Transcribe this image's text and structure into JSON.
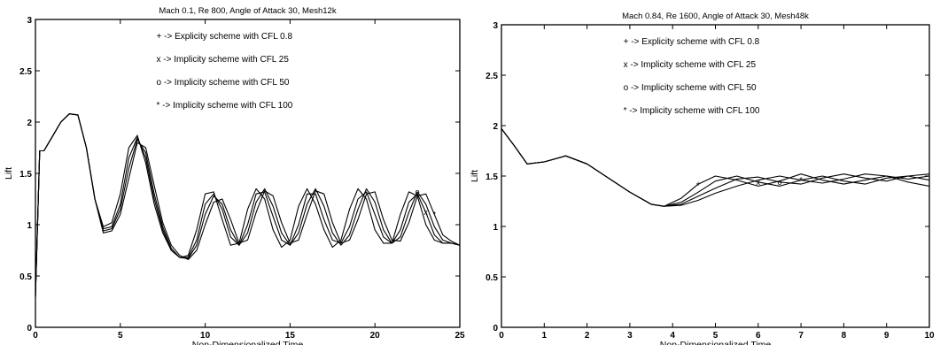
{
  "chart_data": [
    {
      "type": "line",
      "title": "Mach 0.1, Re 800, Angle of Attack 30, Mesh12k",
      "xlabel": "Non-Dimensionalized Time",
      "ylabel": "Lift",
      "xlim": [
        0,
        25
      ],
      "ylim": [
        0,
        3
      ],
      "xticks": [
        "0",
        "5",
        "10",
        "15",
        "20",
        "25"
      ],
      "yticks": [
        "0",
        "0.5",
        "1",
        "1.5",
        "2",
        "2.5",
        "3"
      ],
      "legend": [
        "+ -> Explicity scheme with CFL 0.8",
        "x -> Implicity scheme with CFL  25",
        "o -> Implicity scheme with CFL  50",
        "* -> Implicity scheme with CFL  100"
      ],
      "series": [
        {
          "marker": "+",
          "x": [
            0,
            0.25,
            0.5,
            1,
            1.5,
            2,
            2.5,
            3,
            3.5,
            4,
            4.5,
            5,
            5.5,
            6,
            6.5,
            7,
            7.5,
            8,
            8.5,
            9,
            9.5,
            10,
            10.5,
            11,
            11.5,
            12,
            12.5,
            13,
            13.5,
            14,
            14.5,
            15,
            15.5,
            16,
            16.5,
            17,
            17.5,
            18,
            18.5,
            19,
            19.5,
            20,
            20.5,
            21,
            21.5,
            22,
            22.5,
            23,
            23.5,
            24,
            24.5,
            25
          ],
          "y": [
            0.3,
            1.72,
            1.72,
            1.86,
            2.0,
            2.08,
            2.07,
            1.75,
            1.25,
            0.98,
            1.02,
            1.3,
            1.75,
            1.87,
            1.6,
            1.2,
            0.92,
            0.75,
            0.68,
            0.7,
            0.95,
            1.3,
            1.32,
            1.05,
            0.8,
            0.82,
            1.15,
            1.35,
            1.25,
            0.95,
            0.78,
            0.85,
            1.18,
            1.35,
            1.2,
            0.95,
            0.78,
            0.85,
            1.15,
            1.35,
            1.25,
            0.95,
            0.82,
            0.82,
            1.1,
            1.32,
            1.28,
            1.0,
            0.85,
            0.82,
            0.82,
            0.8
          ]
        },
        {
          "marker": "x",
          "x": [
            0,
            0.25,
            0.5,
            1,
            1.5,
            2,
            2.5,
            3,
            3.5,
            4,
            4.5,
            5,
            5.5,
            6,
            6.5,
            7,
            7.5,
            8,
            8.5,
            9,
            9.5,
            10,
            10.5,
            11,
            11.5,
            12,
            12.5,
            13,
            13.5,
            14,
            14.5,
            15,
            15.5,
            16,
            16.5,
            17,
            17.5,
            18,
            18.5,
            19,
            19.5,
            20,
            20.5,
            21,
            21.5,
            22,
            22.5,
            23,
            23.5,
            24,
            24.5,
            25
          ],
          "y": [
            0.3,
            1.72,
            1.72,
            1.86,
            2.0,
            2.08,
            2.07,
            1.75,
            1.25,
            0.96,
            0.98,
            1.2,
            1.65,
            1.85,
            1.65,
            1.25,
            0.95,
            0.75,
            0.68,
            0.68,
            0.85,
            1.2,
            1.3,
            1.15,
            0.88,
            0.8,
            1.0,
            1.3,
            1.32,
            1.08,
            0.85,
            0.8,
            1.0,
            1.3,
            1.3,
            1.05,
            0.85,
            0.82,
            0.98,
            1.25,
            1.32,
            1.1,
            0.88,
            0.82,
            0.95,
            1.22,
            1.3,
            1.12,
            0.9,
            0.82,
            0.82,
            0.8
          ]
        },
        {
          "marker": "o",
          "x": [
            0,
            0.25,
            0.5,
            1,
            1.5,
            2,
            2.5,
            3,
            3.5,
            4,
            4.5,
            5,
            5.5,
            6,
            6.5,
            7,
            7.5,
            8,
            8.5,
            9,
            9.5,
            10,
            10.5,
            11,
            11.5,
            12,
            12.5,
            13,
            13.5,
            14,
            14.5,
            15,
            15.5,
            16,
            16.5,
            17,
            17.5,
            18,
            18.5,
            19,
            19.5,
            20,
            20.5,
            21,
            21.5,
            22,
            22.5,
            23,
            23.5,
            24,
            24.5,
            25
          ],
          "y": [
            0.3,
            1.72,
            1.72,
            1.86,
            2.0,
            2.08,
            2.07,
            1.75,
            1.25,
            0.94,
            0.96,
            1.15,
            1.55,
            1.83,
            1.7,
            1.3,
            0.98,
            0.77,
            0.68,
            0.67,
            0.8,
            1.1,
            1.28,
            1.2,
            0.95,
            0.8,
            0.92,
            1.22,
            1.35,
            1.18,
            0.92,
            0.8,
            0.92,
            1.2,
            1.35,
            1.18,
            0.92,
            0.8,
            0.9,
            1.15,
            1.35,
            1.22,
            0.95,
            0.82,
            0.88,
            1.12,
            1.32,
            1.2,
            0.98,
            0.85,
            0.82,
            0.8
          ]
        },
        {
          "marker": "*",
          "x": [
            0,
            0.25,
            0.5,
            1,
            1.5,
            2,
            2.5,
            3,
            3.5,
            4,
            4.5,
            5,
            5.5,
            6,
            6.5,
            7,
            7.5,
            8,
            8.5,
            9,
            9.5,
            10,
            10.5,
            11,
            11.5,
            12,
            12.5,
            13,
            13.5,
            14,
            14.5,
            15,
            15.5,
            16,
            16.5,
            17,
            17.5,
            18,
            18.5,
            19,
            19.5,
            20,
            20.5,
            21,
            21.5,
            22,
            22.5,
            23,
            23.5,
            24,
            24.5,
            25
          ],
          "y": [
            0.3,
            1.72,
            1.72,
            1.86,
            2.0,
            2.08,
            2.07,
            1.75,
            1.25,
            0.92,
            0.94,
            1.1,
            1.45,
            1.8,
            1.75,
            1.38,
            1.02,
            0.8,
            0.7,
            0.66,
            0.75,
            1.0,
            1.22,
            1.25,
            1.05,
            0.82,
            0.85,
            1.12,
            1.33,
            1.28,
            1.02,
            0.82,
            0.85,
            1.1,
            1.33,
            1.3,
            1.02,
            0.82,
            0.85,
            1.05,
            1.3,
            1.32,
            1.05,
            0.85,
            0.84,
            1.02,
            1.28,
            1.3,
            1.1,
            0.9,
            0.84,
            0.8
          ]
        }
      ]
    },
    {
      "type": "line",
      "title": "Mach 0.84, Re 1600, Angle of Attack 30, Mesh48k",
      "xlabel": "Non-Dimensionalized Time",
      "ylabel": "Lift",
      "xlim": [
        0,
        10
      ],
      "ylim": [
        0,
        3
      ],
      "xticks": [
        "0",
        "1",
        "2",
        "3",
        "4",
        "5",
        "6",
        "7",
        "8",
        "9",
        "10"
      ],
      "yticks": [
        "0",
        "0.5",
        "1",
        "1.5",
        "2",
        "2.5",
        "3"
      ],
      "legend": [
        "+ -> Explicity scheme with CFL 0.8",
        "x -> Implicity scheme with CFL  25",
        "o -> Implicity scheme with CFL  50",
        "* -> Implicity scheme with CFL  100"
      ],
      "series": [
        {
          "marker": "+",
          "x": [
            0,
            0.3,
            0.6,
            1,
            1.5,
            2,
            2.5,
            3,
            3.5,
            3.8,
            4.2,
            4.6,
            5,
            5.5,
            6,
            6.5,
            7,
            7.5,
            8,
            8.5,
            9,
            9.5,
            10
          ],
          "y": [
            1.97,
            1.8,
            1.62,
            1.64,
            1.7,
            1.62,
            1.48,
            1.34,
            1.22,
            1.2,
            1.28,
            1.42,
            1.5,
            1.46,
            1.4,
            1.45,
            1.52,
            1.46,
            1.42,
            1.46,
            1.5,
            1.44,
            1.4
          ]
        },
        {
          "marker": "x",
          "x": [
            0,
            0.3,
            0.6,
            1,
            1.5,
            2,
            2.5,
            3,
            3.5,
            3.8,
            4.2,
            4.6,
            5,
            5.5,
            6,
            6.5,
            7,
            7.5,
            8,
            8.5,
            9,
            9.5,
            10
          ],
          "y": [
            1.97,
            1.8,
            1.62,
            1.64,
            1.7,
            1.62,
            1.48,
            1.34,
            1.22,
            1.2,
            1.24,
            1.34,
            1.45,
            1.5,
            1.44,
            1.4,
            1.46,
            1.5,
            1.45,
            1.42,
            1.48,
            1.5,
            1.46
          ]
        },
        {
          "marker": "o",
          "x": [
            0,
            0.3,
            0.6,
            1,
            1.5,
            2,
            2.5,
            3,
            3.5,
            3.8,
            4.2,
            4.6,
            5,
            5.5,
            6,
            6.5,
            7,
            7.5,
            8,
            8.5,
            9,
            9.5,
            10
          ],
          "y": [
            1.97,
            1.8,
            1.62,
            1.64,
            1.7,
            1.62,
            1.48,
            1.34,
            1.22,
            1.2,
            1.22,
            1.3,
            1.38,
            1.47,
            1.49,
            1.44,
            1.42,
            1.48,
            1.52,
            1.48,
            1.45,
            1.5,
            1.52
          ]
        },
        {
          "marker": "*",
          "x": [
            0,
            0.3,
            0.6,
            1,
            1.5,
            2,
            2.5,
            3,
            3.5,
            3.8,
            4.2,
            4.6,
            5,
            5.5,
            6,
            6.5,
            7,
            7.5,
            8,
            8.5,
            9,
            9.5,
            10
          ],
          "y": [
            1.97,
            1.8,
            1.62,
            1.64,
            1.7,
            1.62,
            1.48,
            1.34,
            1.22,
            1.2,
            1.21,
            1.26,
            1.33,
            1.4,
            1.46,
            1.5,
            1.46,
            1.43,
            1.47,
            1.52,
            1.5,
            1.47,
            1.5
          ]
        }
      ]
    }
  ]
}
